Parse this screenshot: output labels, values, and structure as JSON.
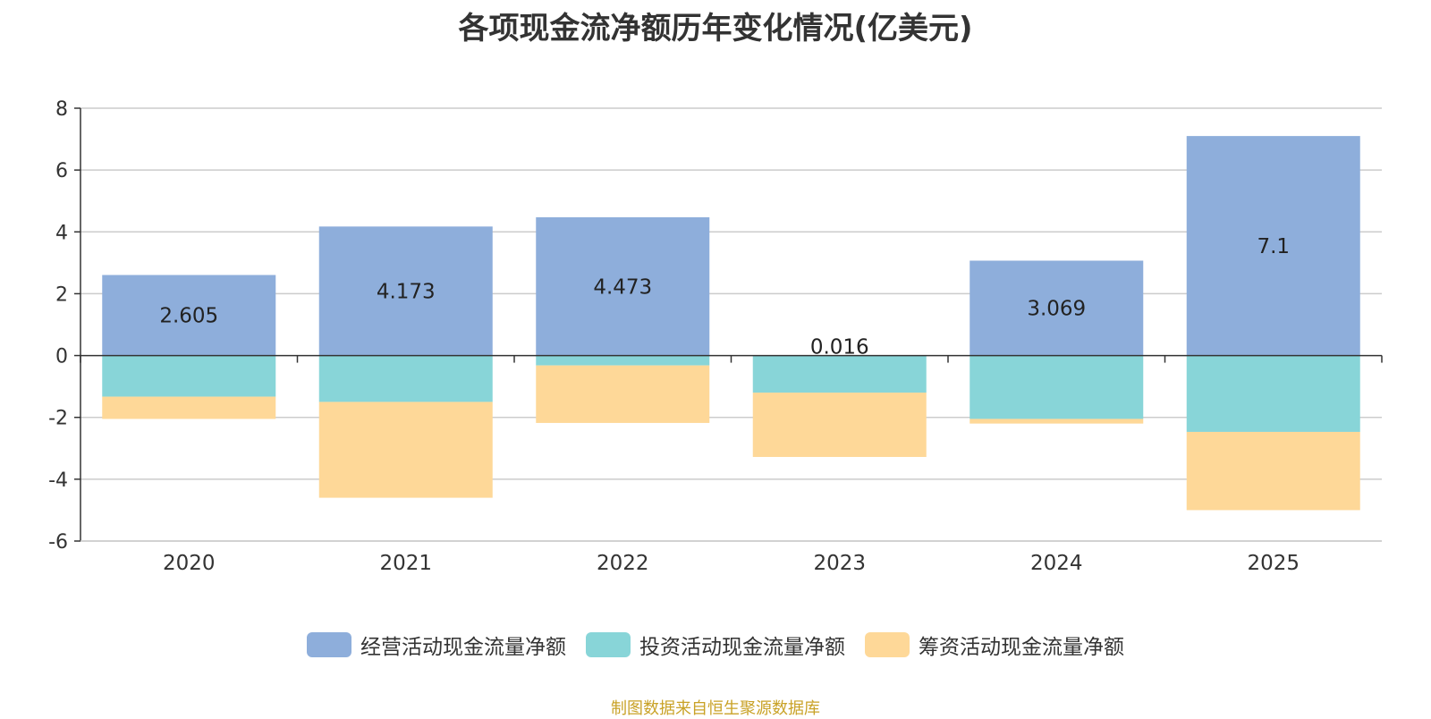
{
  "chart_data": {
    "type": "bar",
    "stacked": true,
    "title": "各项现金流净额历年变化情况(亿美元)",
    "categories": [
      "2020",
      "2021",
      "2022",
      "2023",
      "2024",
      "2025"
    ],
    "ylim": [
      -6,
      8
    ],
    "yticks": [
      8,
      6,
      4,
      2,
      0,
      -2,
      -4,
      -6
    ],
    "grid": true,
    "legend_position": "bottom",
    "series": [
      {
        "name": "经营活动现金流量净额",
        "color": "#8eaedb",
        "values": [
          2.605,
          4.173,
          4.473,
          0.016,
          3.069,
          7.1
        ],
        "labels": [
          "2.605",
          "4.173",
          "4.473",
          "0.016",
          "3.069",
          "7.1"
        ]
      },
      {
        "name": "投资活动现金流量净额",
        "color": "#88d5d8",
        "values": [
          -1.33,
          -1.5,
          -0.32,
          -1.2,
          -2.05,
          -2.47
        ]
      },
      {
        "name": "筹资活动现金流量净额",
        "color": "#fed898",
        "values": [
          -0.72,
          -3.1,
          -1.86,
          -2.08,
          -0.15,
          -2.53
        ]
      }
    ]
  },
  "source": "制图数据来自恒生聚源数据库"
}
